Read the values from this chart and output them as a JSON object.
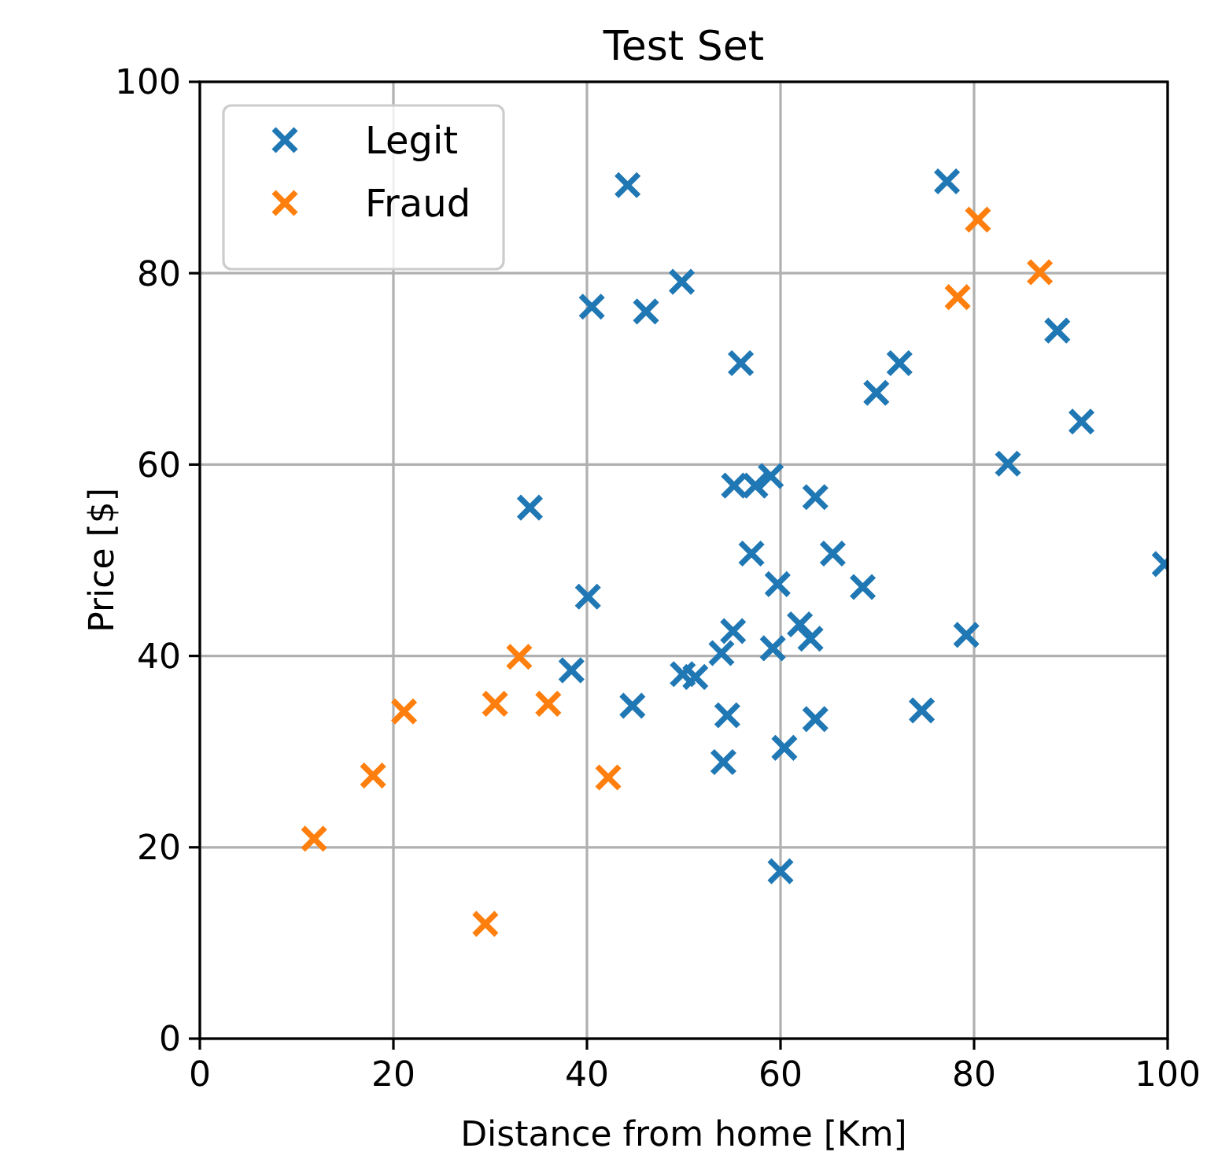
{
  "chart_data": {
    "type": "scatter",
    "title": "Test Set",
    "xlabel": "Distance from home [Km]",
    "ylabel": "Price [$]",
    "xlim": [
      0,
      100
    ],
    "ylim": [
      0,
      100
    ],
    "xticks": [
      0,
      20,
      40,
      60,
      80,
      100
    ],
    "yticks": [
      0,
      20,
      40,
      60,
      80,
      100
    ],
    "grid": true,
    "legend": "top left",
    "marker": "cross",
    "series": [
      {
        "name": "Legit",
        "color": "#1f77b4",
        "x": [
          44.2,
          40.5,
          46.1,
          49.8,
          34.1,
          77.2,
          88.6,
          91.1,
          83.5,
          72.3,
          69.9,
          55.9,
          59.0,
          55.2,
          57.4,
          63.6,
          99.7,
          57.0,
          65.4,
          59.7,
          68.5,
          55.1,
          53.9,
          49.9,
          51.2,
          59.2,
          62.0,
          63.1,
          79.2,
          54.5,
          63.6,
          54.1,
          60.4,
          74.6,
          60.0,
          40.1,
          38.4,
          44.7
        ],
        "values": [
          89.2,
          76.5,
          76.0,
          79.1,
          55.5,
          89.6,
          74.0,
          64.5,
          60.1,
          70.6,
          67.5,
          70.6,
          58.8,
          57.8,
          57.8,
          56.6,
          49.6,
          50.7,
          50.7,
          47.5,
          47.2,
          42.6,
          40.3,
          38.1,
          37.8,
          40.8,
          43.3,
          41.8,
          42.2,
          33.8,
          33.4,
          28.9,
          30.4,
          34.3,
          17.5,
          46.2,
          38.5,
          34.8
        ]
      },
      {
        "name": "Fraud",
        "color": "#ff7f0e",
        "x": [
          11.8,
          17.9,
          21.1,
          33.0,
          30.5,
          36.0,
          42.2,
          29.5,
          80.4,
          78.3,
          86.8
        ],
        "values": [
          20.9,
          27.5,
          34.2,
          39.9,
          35.0,
          35.0,
          27.3,
          12.0,
          85.6,
          77.5,
          80.1
        ]
      }
    ]
  }
}
